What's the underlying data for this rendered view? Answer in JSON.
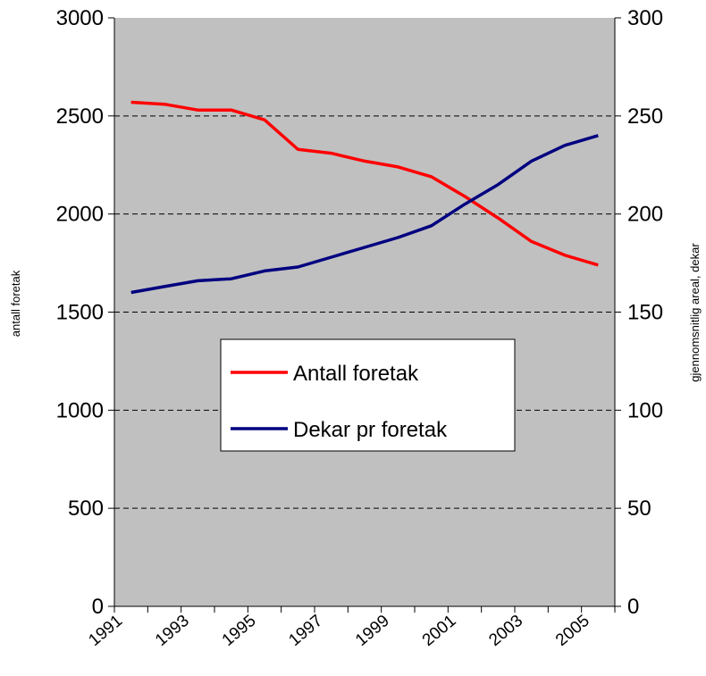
{
  "chart_data": {
    "type": "line",
    "categories": [
      "1991",
      null,
      "1993",
      null,
      "1995",
      null,
      "1997",
      null,
      "1999",
      null,
      "2001",
      null,
      "2003",
      null,
      "2005"
    ],
    "ylabel": "antall foretak",
    "y2label": "gjennomsnitlig areal, dekar",
    "ylim": [
      0,
      3000
    ],
    "yticks": [
      0,
      500,
      1000,
      1500,
      2000,
      2500,
      3000
    ],
    "y2lim": [
      0,
      300
    ],
    "y2ticks": [
      0,
      50,
      100,
      150,
      200,
      250,
      300
    ],
    "grid": true,
    "legend": "center",
    "series": [
      {
        "name": "Antall foretak",
        "color": "#ff0000",
        "values": [
          2570,
          2560,
          2530,
          2530,
          2480,
          2330,
          2310,
          2270,
          2240,
          2190,
          2090,
          1980,
          1860,
          1790,
          1740
        ]
      },
      {
        "name": "Dekar pr foretak",
        "color": "#000080",
        "axis": "y2",
        "values": [
          160,
          163,
          166,
          167,
          171,
          173,
          178,
          183,
          188,
          194,
          205,
          215,
          227,
          235,
          240
        ]
      }
    ]
  }
}
